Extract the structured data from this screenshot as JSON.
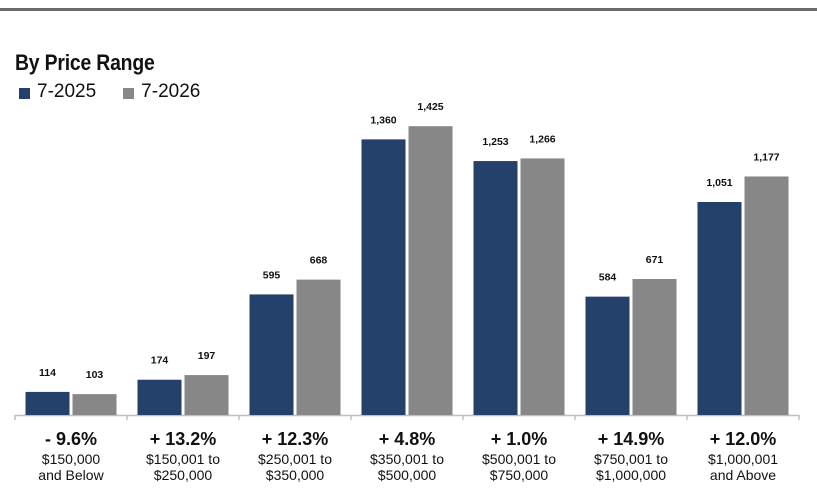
{
  "chart_data": {
    "type": "bar",
    "title": "By Price Range",
    "categories": [
      [
        "$150,000",
        "and Below"
      ],
      [
        "$150,001 to",
        "$250,000"
      ],
      [
        "$250,001 to",
        "$350,000"
      ],
      [
        "$350,001 to",
        "$500,000"
      ],
      [
        "$500,001 to",
        "$750,000"
      ],
      [
        "$750,001 to",
        "$1,000,000"
      ],
      [
        "$1,000,001",
        "and Above"
      ]
    ],
    "percent_change": [
      "- 9.6%",
      "+ 13.2%",
      "+ 12.3%",
      "+ 4.8%",
      "+ 1.0%",
      "+ 14.9%",
      "+ 12.0%"
    ],
    "series": [
      {
        "name": "7-2025",
        "color": "#23416b",
        "values": [
          114,
          174,
          595,
          1360,
          1253,
          584,
          1051
        ],
        "labels": [
          "114",
          "174",
          "595",
          "1,360",
          "1,253",
          "584",
          "1,051"
        ]
      },
      {
        "name": "7-2026",
        "color": "#878787",
        "values": [
          103,
          197,
          668,
          1425,
          1266,
          671,
          1177
        ],
        "labels": [
          "103",
          "197",
          "668",
          "1,425",
          "1,266",
          "671",
          "1,177"
        ]
      }
    ],
    "ylim": [
      0,
      1500
    ],
    "grid": false,
    "legend_position": "top-left"
  }
}
